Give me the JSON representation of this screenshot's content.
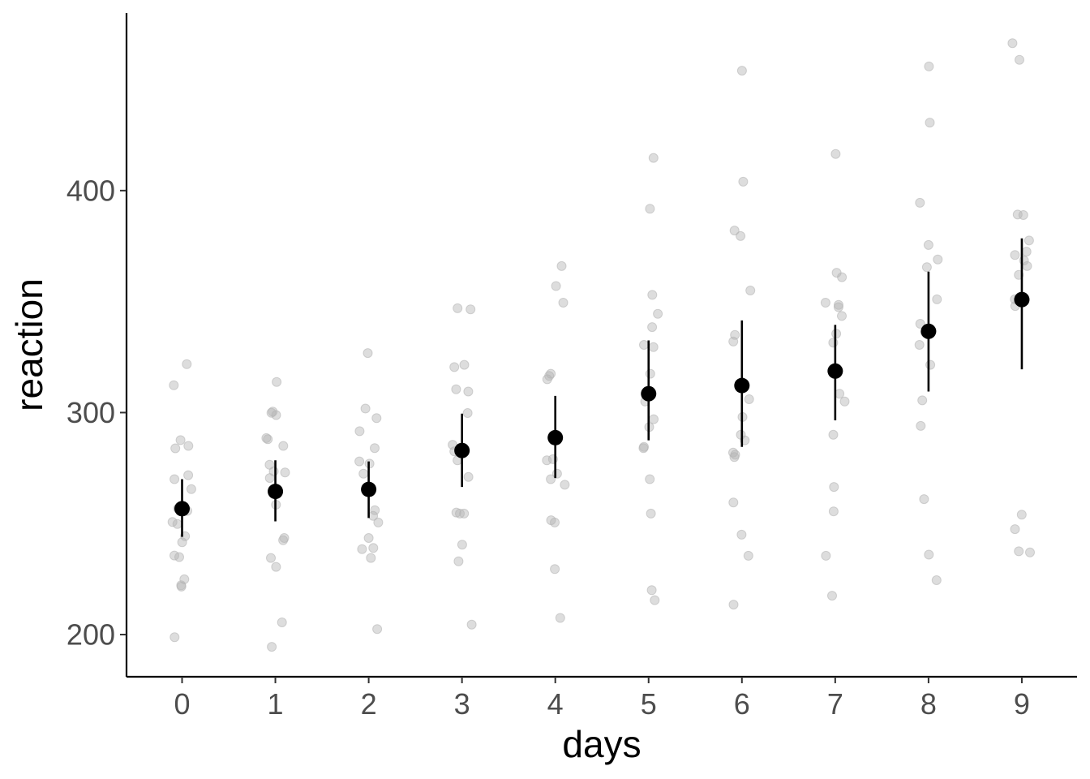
{
  "chart_data": {
    "type": "scatter",
    "xlabel": "days",
    "ylabel": "reaction",
    "x_ticks": [
      "0",
      "1",
      "2",
      "3",
      "4",
      "5",
      "6",
      "7",
      "8",
      "9"
    ],
    "y_ticks": [
      "200",
      "300",
      "400"
    ],
    "ylim": [
      181,
      480
    ],
    "grid": false,
    "legend": "none",
    "colors": {
      "mean": "#000000",
      "raw": "#b3b3b3",
      "axis": "#000000",
      "tick_text": "#4d4d4d"
    },
    "summary": {
      "x": [
        0,
        1,
        2,
        3,
        4,
        5,
        6,
        7,
        8,
        9
      ],
      "mean": [
        256.7,
        264.5,
        265.4,
        282.9,
        288.7,
        308.5,
        312.2,
        318.7,
        336.6,
        350.9
      ],
      "lower": [
        244.0,
        251.0,
        252.5,
        266.5,
        270.5,
        287.5,
        284.5,
        296.5,
        309.5,
        319.5
      ],
      "upper": [
        270.0,
        278.5,
        278.0,
        299.5,
        307.5,
        332.5,
        341.5,
        339.5,
        363.5,
        378.5
      ]
    },
    "points": [
      {
        "day": 0,
        "values": [
          321.8,
          312.3,
          287.6,
          285.0,
          283.9,
          271.8,
          270.0,
          265.5,
          256.8,
          255.7,
          250.7,
          249.8,
          244.3,
          241.6,
          235.6,
          234.9,
          224.9,
          222.2,
          221.6,
          198.8
        ]
      },
      {
        "day": 1,
        "values": [
          313.8,
          300.4,
          299.9,
          298.9,
          288.0,
          288.5,
          285.0,
          276.5,
          273.5,
          273.0,
          270.5,
          258.5,
          243.5,
          242.5,
          234.5,
          230.5,
          205.5,
          194.5
        ]
      },
      {
        "day": 2,
        "values": [
          326.8,
          301.8,
          297.5,
          291.6,
          284.0,
          278.0,
          277.0,
          272.5,
          266.0,
          256.0,
          253.5,
          250.5,
          243.5,
          239.0,
          238.5,
          234.5,
          202.5
        ]
      },
      {
        "day": 3,
        "values": [
          347.0,
          346.5,
          321.5,
          320.5,
          310.5,
          309.5,
          299.8,
          285.5,
          282.5,
          278.5,
          271.0,
          255.0,
          254.5,
          254.5,
          240.5,
          233.0,
          204.5
        ]
      },
      {
        "day": 4,
        "values": [
          366.0,
          357.0,
          349.5,
          317.5,
          316.5,
          315.0,
          279.0,
          278.5,
          272.5,
          270.0,
          267.5,
          251.5,
          250.5,
          229.5,
          207.5
        ]
      },
      {
        "day": 5,
        "values": [
          414.7,
          391.8,
          353.0,
          344.5,
          338.5,
          330.5,
          329.5,
          317.5,
          305.0,
          297.0,
          293.5,
          284.5,
          284.0,
          270.0,
          254.5,
          220.0,
          215.5
        ]
      },
      {
        "day": 6,
        "values": [
          454.0,
          404.0,
          382.0,
          379.5,
          355.0,
          335.0,
          332.0,
          306.0,
          298.0,
          290.0,
          287.5,
          282.0,
          280.0,
          281.0,
          259.5,
          245.0,
          235.5,
          213.5
        ]
      },
      {
        "day": 7,
        "values": [
          416.5,
          363.0,
          361.0,
          349.5,
          348.5,
          347.5,
          343.5,
          335.5,
          331.5,
          308.5,
          305.0,
          290.0,
          266.5,
          255.5,
          235.5,
          217.5
        ]
      },
      {
        "day": 8,
        "values": [
          455.9,
          430.6,
          394.5,
          375.5,
          369.0,
          365.5,
          351.0,
          340.0,
          336.0,
          330.5,
          321.5,
          305.5,
          294.0,
          261.0,
          236.0,
          224.5
        ]
      },
      {
        "day": 9,
        "values": [
          466.4,
          458.9,
          389.2,
          389.0,
          377.5,
          372.5,
          371.0,
          368.5,
          366.0,
          362.0,
          352.0,
          351.0,
          348.0,
          254.0,
          247.5,
          237.5,
          237.0
        ]
      }
    ]
  }
}
